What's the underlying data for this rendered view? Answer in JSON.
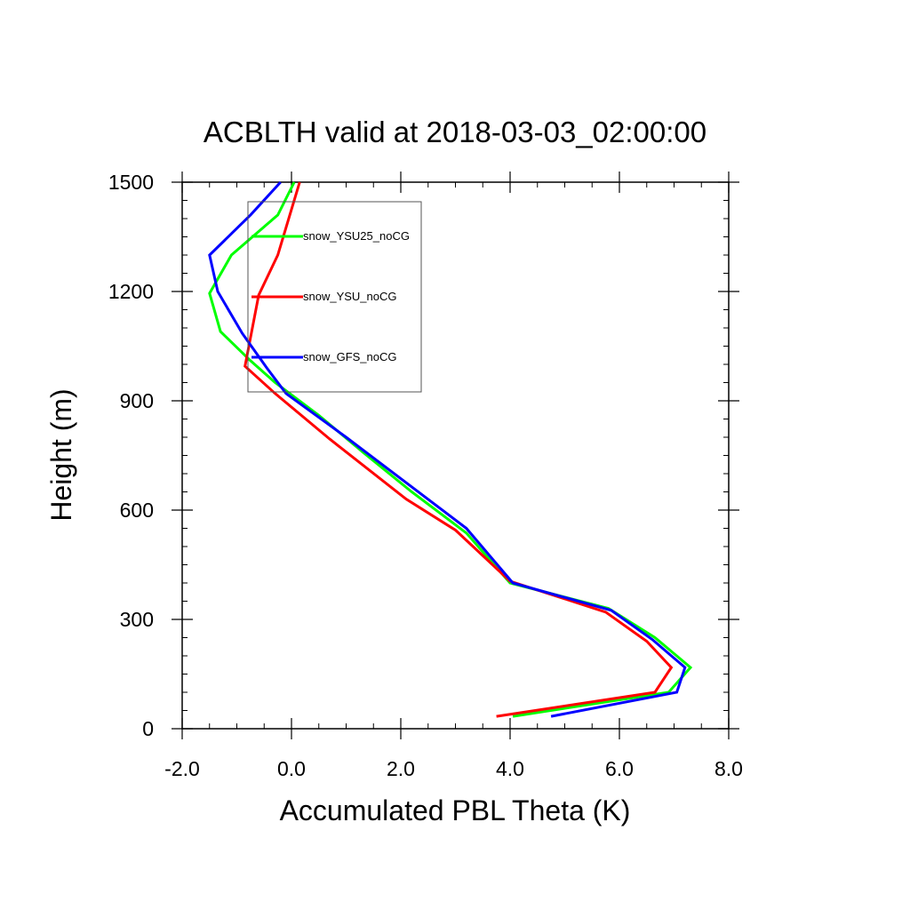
{
  "chart_data": {
    "type": "line",
    "title": "ACBLTH valid at 2018-03-03_02:00:00",
    "xlabel": "Accumulated PBL Theta (K)",
    "ylabel": "Height (m)",
    "xlim": [
      -2.0,
      8.0
    ],
    "ylim": [
      0,
      1500
    ],
    "xticks": [
      -2.0,
      0.0,
      2.0,
      4.0,
      6.0,
      8.0
    ],
    "xtick_labels": [
      "-2.0",
      "0.0",
      "2.0",
      "4.0",
      "6.0",
      "8.0"
    ],
    "yticks": [
      0,
      300,
      600,
      900,
      1200,
      1500
    ],
    "ytick_labels": [
      "0",
      "300",
      "600",
      "900",
      "1200",
      "1500"
    ],
    "grid": false,
    "legend_position": "top-left",
    "series": [
      {
        "name": "snow_YSU25_noCG",
        "color": "#00ff00",
        "points": [
          [
            4.05,
            34
          ],
          [
            6.9,
            100
          ],
          [
            7.3,
            168
          ],
          [
            6.65,
            250
          ],
          [
            5.8,
            330
          ],
          [
            4.0,
            400
          ],
          [
            3.2,
            537
          ],
          [
            2.2,
            650
          ],
          [
            1.3,
            760
          ],
          [
            0.5,
            860
          ],
          [
            -0.3,
            950
          ],
          [
            -0.75,
            1010
          ],
          [
            -1.3,
            1090
          ],
          [
            -1.5,
            1195
          ],
          [
            -1.1,
            1300
          ],
          [
            -0.25,
            1410
          ],
          [
            0.05,
            1500
          ]
        ]
      },
      {
        "name": "snow_YSU_noCG",
        "color": "#ff0000",
        "points": [
          [
            3.75,
            34
          ],
          [
            6.65,
            100
          ],
          [
            6.95,
            168
          ],
          [
            6.5,
            240
          ],
          [
            5.75,
            320
          ],
          [
            4.0,
            405
          ],
          [
            3.0,
            545
          ],
          [
            2.1,
            630
          ],
          [
            0.7,
            795
          ],
          [
            -0.3,
            920
          ],
          [
            -0.85,
            995
          ],
          [
            -0.6,
            1190
          ],
          [
            -0.25,
            1300
          ],
          [
            0.15,
            1500
          ]
        ]
      },
      {
        "name": "snow_GFS_noCG",
        "color": "#0000ff",
        "points": [
          [
            4.75,
            34
          ],
          [
            7.05,
            100
          ],
          [
            7.2,
            168
          ],
          [
            6.6,
            245
          ],
          [
            5.85,
            325
          ],
          [
            4.05,
            400
          ],
          [
            3.2,
            550
          ],
          [
            1.0,
            800
          ],
          [
            -0.1,
            920
          ],
          [
            -0.45,
            990
          ],
          [
            -0.9,
            1085
          ],
          [
            -1.35,
            1200
          ],
          [
            -1.5,
            1300
          ],
          [
            -0.75,
            1410
          ],
          [
            -0.2,
            1500
          ]
        ]
      }
    ]
  }
}
